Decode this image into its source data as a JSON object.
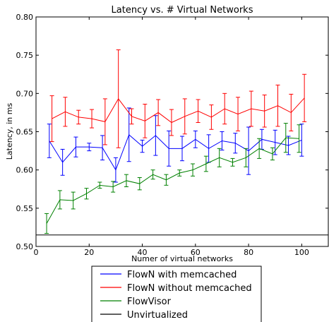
{
  "chart_data": {
    "type": "line",
    "title": "Latency vs. # Virtual Networks",
    "xlabel": "Numer of virtual networks",
    "ylabel": "Latency, in ms",
    "xlim": [
      0,
      110
    ],
    "ylim": [
      0.5,
      0.8
    ],
    "x_ticks": [
      0,
      20,
      40,
      60,
      80,
      100
    ],
    "x_tick_labels": [
      "0",
      "20",
      "40",
      "60",
      "80",
      "100"
    ],
    "y_ticks": [
      0.5,
      0.55,
      0.6,
      0.65,
      0.7,
      0.75,
      0.8
    ],
    "y_tick_labels": [
      "0.50",
      "0.55",
      "0.60",
      "0.65",
      "0.70",
      "0.75",
      "0.80"
    ],
    "grid": false,
    "legend_position": "below plot",
    "series": [
      {
        "name": "FlowN with memcached",
        "color": "#0000ff",
        "x": [
          5,
          10,
          15,
          20,
          25,
          30,
          35,
          40,
          45,
          50,
          55,
          60,
          65,
          70,
          75,
          80,
          85,
          90,
          95,
          100
        ],
        "y": [
          0.638,
          0.61,
          0.63,
          0.63,
          0.629,
          0.6,
          0.646,
          0.631,
          0.645,
          0.628,
          0.628,
          0.64,
          0.628,
          0.638,
          0.635,
          0.625,
          0.64,
          0.636,
          0.632,
          0.639
        ],
        "err": [
          0.022,
          0.017,
          0.013,
          0.005,
          0.016,
          0.016,
          0.035,
          0.008,
          0.026,
          0.023,
          0.016,
          0.011,
          0.018,
          0.012,
          0.013,
          0.031,
          0.013,
          0.016,
          0.012,
          0.021
        ]
      },
      {
        "name": "FlowN without memcached",
        "color": "#ff0000",
        "x": [
          6,
          11,
          16,
          21,
          26,
          31,
          36,
          41,
          46,
          51,
          56,
          61,
          66,
          71,
          76,
          81,
          86,
          91,
          96,
          101
        ],
        "y": [
          0.667,
          0.676,
          0.669,
          0.667,
          0.663,
          0.693,
          0.67,
          0.664,
          0.675,
          0.662,
          0.67,
          0.677,
          0.669,
          0.68,
          0.673,
          0.68,
          0.677,
          0.684,
          0.675,
          0.694
        ],
        "err": [
          0.03,
          0.019,
          0.009,
          0.012,
          0.03,
          0.064,
          0.01,
          0.022,
          0.017,
          0.017,
          0.023,
          0.015,
          0.016,
          0.02,
          0.022,
          0.023,
          0.021,
          0.027,
          0.024,
          0.031
        ]
      },
      {
        "name": "FlowVisor",
        "color": "#008000",
        "x": [
          4,
          9,
          14,
          19,
          24,
          29,
          34,
          39,
          44,
          49,
          54,
          59,
          64,
          69,
          74,
          79,
          84,
          89,
          94,
          99
        ],
        "y": [
          0.53,
          0.561,
          0.56,
          0.569,
          0.58,
          0.578,
          0.586,
          0.582,
          0.594,
          0.587,
          0.596,
          0.6,
          0.608,
          0.616,
          0.61,
          0.616,
          0.628,
          0.621,
          0.642,
          0.641
        ],
        "err": [
          0.013,
          0.012,
          0.011,
          0.007,
          0.004,
          0.007,
          0.008,
          0.008,
          0.006,
          0.007,
          0.004,
          0.008,
          0.01,
          0.012,
          0.005,
          0.012,
          0.013,
          0.008,
          0.019,
          0.018
        ]
      },
      {
        "name": "Unvirtualized",
        "color": "#000000",
        "x": [
          0,
          110
        ],
        "y": [
          0.515,
          0.515
        ]
      }
    ]
  }
}
